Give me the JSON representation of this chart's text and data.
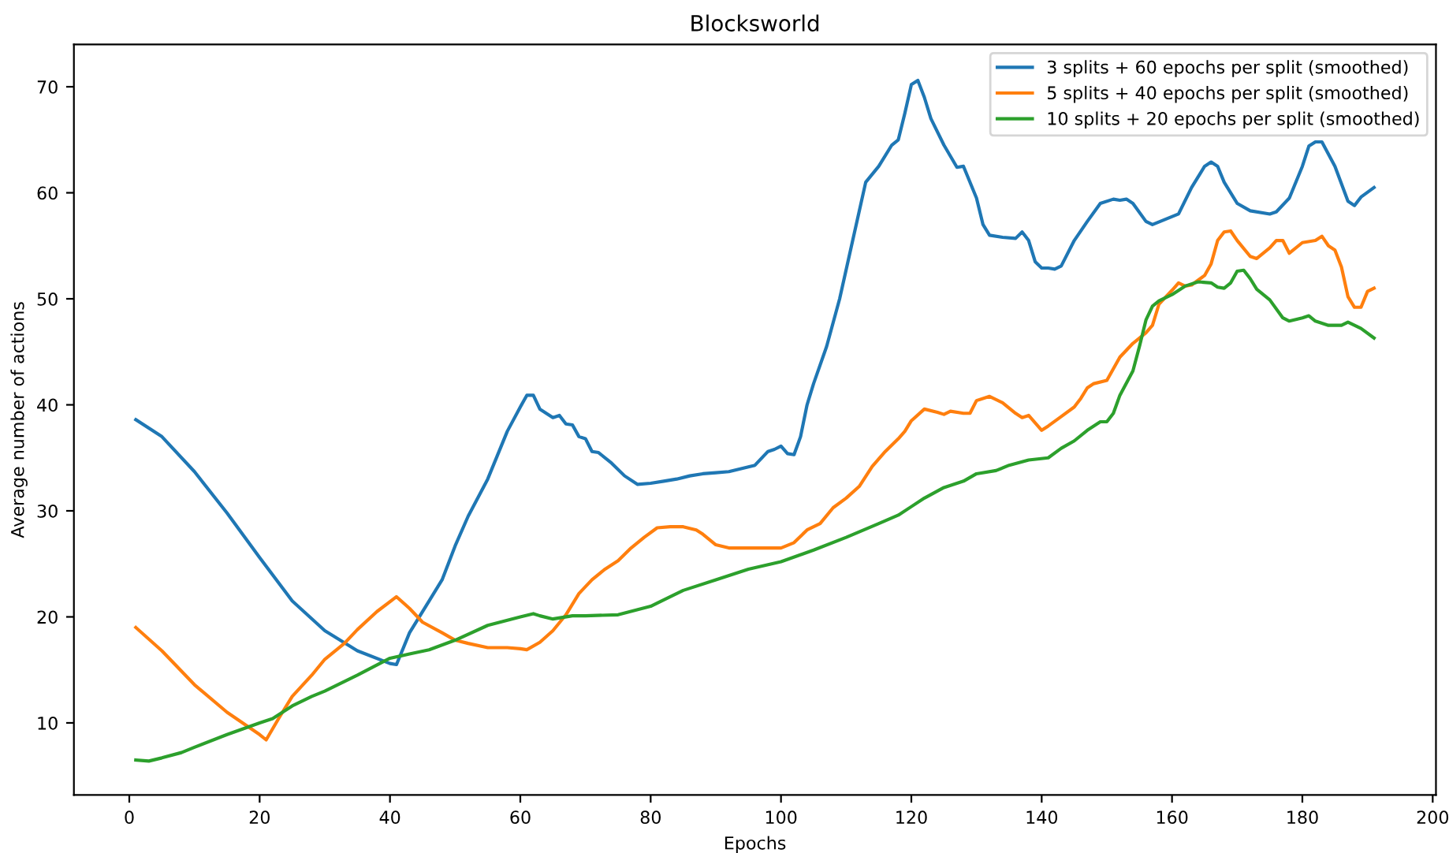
{
  "chart_data": {
    "type": "line",
    "title": "Blocksworld",
    "xlabel": "Epochs",
    "ylabel": "Average number of actions",
    "xlim": [
      -8.5,
      200.5
    ],
    "ylim": [
      3.2,
      74.0
    ],
    "xticks": [
      0,
      20,
      40,
      60,
      80,
      100,
      120,
      140,
      160,
      180,
      200
    ],
    "yticks": [
      10,
      20,
      30,
      40,
      50,
      60,
      70
    ],
    "grid": false,
    "legend": "top right",
    "marker": "none",
    "line_style": "solid",
    "series": [
      {
        "name": "3 splits + 60 epochs per split (smoothed)",
        "color": "#1f77b4",
        "x": [
          1,
          5,
          10,
          15,
          20,
          25,
          30,
          35,
          40,
          41,
          43,
          46,
          48,
          50,
          52,
          55,
          58,
          60,
          61,
          62,
          63,
          65,
          66,
          67,
          68,
          69,
          70,
          71,
          72,
          74,
          76,
          78,
          80,
          82,
          84,
          86,
          88,
          90,
          92,
          94,
          96,
          98,
          99,
          100,
          101,
          102,
          103,
          104,
          105,
          107,
          109,
          111,
          113,
          115,
          117,
          118,
          119,
          120,
          121,
          122,
          123,
          125,
          127,
          128,
          130,
          131,
          132,
          134,
          136,
          137,
          138,
          139,
          140,
          141,
          142,
          143,
          145,
          147,
          149,
          151,
          152,
          153,
          154,
          156,
          157,
          159,
          161,
          163,
          165,
          166,
          167,
          168,
          170,
          172,
          175,
          176,
          178,
          180,
          181,
          182,
          183,
          185,
          187,
          188,
          189,
          191
        ],
        "values": [
          38.6,
          37.0,
          33.7,
          29.8,
          25.6,
          21.5,
          18.7,
          16.8,
          15.6,
          15.5,
          18.5,
          21.5,
          23.5,
          26.7,
          29.5,
          33,
          37.5,
          39.8,
          40.9,
          40.9,
          39.6,
          38.8,
          39.0,
          38.2,
          38.1,
          37,
          36.8,
          35.6,
          35.5,
          34.5,
          33.3,
          32.5,
          32.6,
          32.8,
          33.0,
          33.3,
          33.5,
          33.6,
          33.7,
          34,
          34.3,
          35.6,
          35.8,
          36.1,
          35.4,
          35.3,
          37,
          40,
          42,
          45.5,
          50,
          55.5,
          61,
          62.5,
          64.5,
          65,
          67.5,
          70.2,
          70.6,
          69,
          67,
          64.5,
          62.4,
          62.5,
          59.5,
          57,
          56,
          55.8,
          55.7,
          56.3,
          55.5,
          53.5,
          52.9,
          52.9,
          52.8,
          53.1,
          55.5,
          57.3,
          59,
          59.4,
          59.3,
          59.4,
          59.0,
          57.3,
          57.0,
          57.5,
          58.0,
          60.5,
          62.5,
          62.9,
          62.5,
          61,
          59,
          58.3,
          58,
          58.2,
          59.5,
          62.5,
          64.4,
          64.8,
          64.8,
          62.5,
          59.2,
          58.8,
          59.6,
          60.5
        ]
      },
      {
        "name": "5 splits + 40 epochs per split (smoothed)",
        "color": "#ff7f0e",
        "x": [
          1,
          5,
          10,
          15,
          20,
          21,
          23,
          25,
          28,
          30,
          33,
          35,
          38,
          41,
          43,
          45,
          48,
          50,
          52,
          55,
          58,
          60,
          61,
          63,
          65,
          67,
          69,
          71,
          73,
          75,
          77,
          79,
          81,
          83,
          85,
          87,
          88,
          90,
          92,
          95,
          98,
          100,
          102,
          104,
          106,
          108,
          110,
          112,
          114,
          116,
          118,
          119,
          120,
          122,
          124,
          125,
          126,
          128,
          129,
          130,
          132,
          134,
          136,
          137,
          138,
          140,
          141,
          143,
          145,
          146,
          147,
          148,
          150,
          152,
          154,
          156,
          157,
          158,
          160,
          161,
          162,
          163,
          165,
          166,
          167,
          168,
          169,
          170,
          172,
          173,
          175,
          176,
          177,
          178,
          180,
          182,
          183,
          184,
          185,
          186,
          187,
          188,
          189,
          190,
          191
        ],
        "values": [
          19.0,
          16.8,
          13.6,
          11.0,
          8.9,
          8.4,
          10.5,
          12.5,
          14.5,
          16,
          17.5,
          18.8,
          20.5,
          21.9,
          20.8,
          19.5,
          18.5,
          17.8,
          17.5,
          17.1,
          17.1,
          17.0,
          16.9,
          17.6,
          18.7,
          20.2,
          22.2,
          23.5,
          24.5,
          25.3,
          26.5,
          27.5,
          28.4,
          28.5,
          28.5,
          28.2,
          27.8,
          26.8,
          26.5,
          26.5,
          26.5,
          26.5,
          27.0,
          28.2,
          28.8,
          30.3,
          31.2,
          32.3,
          34.2,
          35.6,
          36.8,
          37.5,
          38.5,
          39.6,
          39.3,
          39.1,
          39.4,
          39.2,
          39.2,
          40.4,
          40.8,
          40.2,
          39.2,
          38.8,
          39.0,
          37.6,
          38.0,
          38.9,
          39.8,
          40.6,
          41.6,
          42.0,
          42.3,
          44.5,
          45.8,
          46.8,
          47.5,
          49.5,
          50.8,
          51.5,
          51.2,
          51.3,
          52.2,
          53.3,
          55.5,
          56.3,
          56.4,
          55.5,
          54,
          53.8,
          54.8,
          55.5,
          55.5,
          54.3,
          55.3,
          55.5,
          55.9,
          55,
          54.6,
          53,
          50.2,
          49.2,
          49.2,
          50.7,
          51.0
        ]
      },
      {
        "name": "10 splits + 20 epochs per split (smoothed)",
        "color": "#2ca02c",
        "x": [
          1,
          3,
          5,
          8,
          10,
          15,
          20,
          22,
          25,
          28,
          30,
          35,
          40,
          43,
          46,
          50,
          55,
          60,
          62,
          63,
          65,
          68,
          70,
          75,
          80,
          85,
          90,
          95,
          100,
          105,
          110,
          115,
          118,
          120,
          122,
          125,
          128,
          130,
          133,
          135,
          138,
          141,
          143,
          145,
          147,
          149,
          150,
          151,
          152,
          154,
          155,
          156,
          157,
          158,
          160,
          162,
          164,
          166,
          167,
          168,
          169,
          170,
          171,
          172,
          173,
          175,
          177,
          178,
          180,
          181,
          182,
          184,
          186,
          187,
          189,
          191
        ],
        "values": [
          6.5,
          6.4,
          6.7,
          7.2,
          7.7,
          8.9,
          10.0,
          10.4,
          11.6,
          12.5,
          13.0,
          14.5,
          16.1,
          16.5,
          16.9,
          17.8,
          19.2,
          20.0,
          20.3,
          20.1,
          19.8,
          20.1,
          20.1,
          20.2,
          21.0,
          22.5,
          23.5,
          24.5,
          25.2,
          26.3,
          27.5,
          28.8,
          29.6,
          30.4,
          31.2,
          32.2,
          32.8,
          33.5,
          33.8,
          34.3,
          34.8,
          35.0,
          35.9,
          36.6,
          37.6,
          38.4,
          38.4,
          39.2,
          40.9,
          43.2,
          45.5,
          48,
          49.3,
          49.8,
          50.4,
          51.2,
          51.6,
          51.5,
          51.1,
          51.0,
          51.5,
          52.6,
          52.7,
          51.9,
          50.9,
          49.9,
          48.2,
          47.9,
          48.2,
          48.4,
          47.9,
          47.5,
          47.5,
          47.8,
          47.2,
          46.3
        ]
      }
    ]
  }
}
